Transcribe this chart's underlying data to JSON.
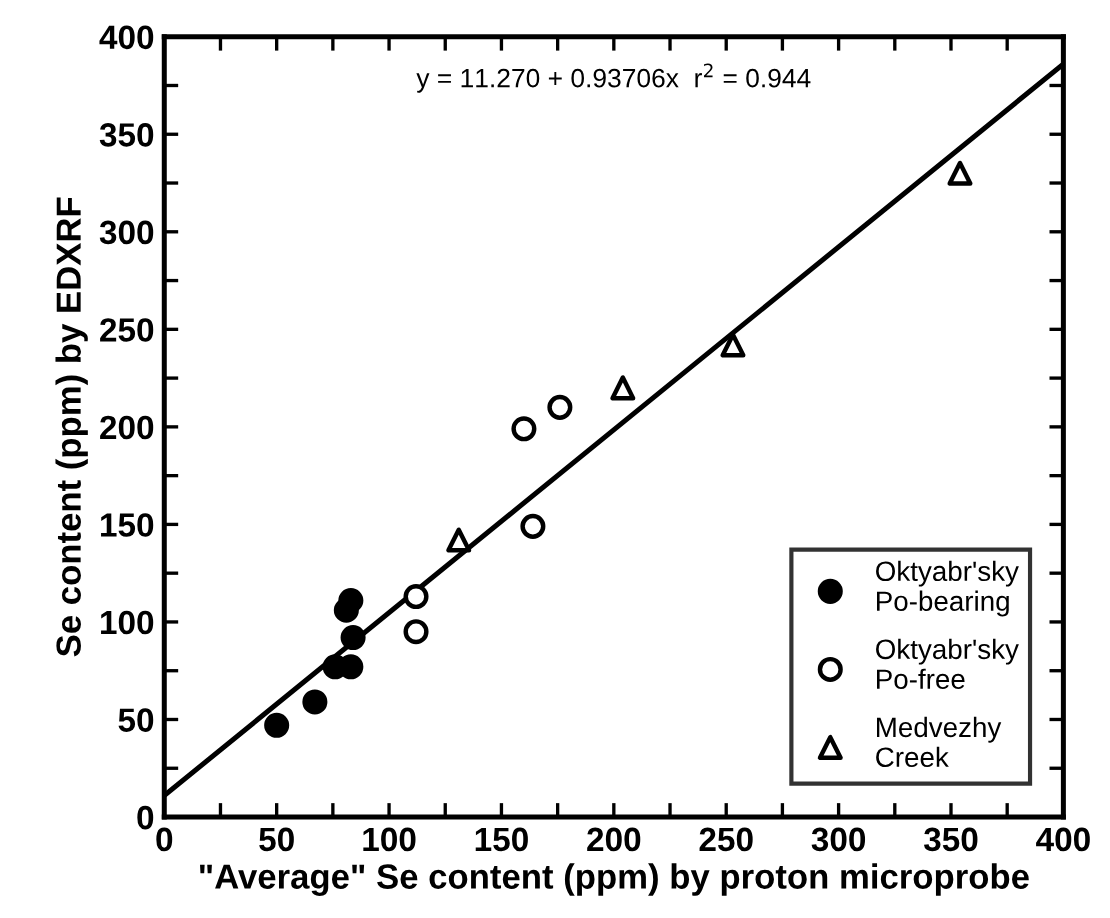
{
  "chart_data": {
    "type": "scatter",
    "xlabel": "\"Average\" Se content (ppm) by proton microprobe",
    "ylabel": "Se content (ppm) by EDXRF",
    "annotations": [
      {
        "text": "y = 11.270 + 0.93706x  r$^{2}$ = 0.944"
      }
    ],
    "xlim": [
      0,
      400
    ],
    "ylim": [
      0,
      400
    ],
    "xticks": [
      0,
      {
        "value": 25,
        "label": null
      },
      50,
      {
        "value": 75,
        "label": null
      },
      100,
      {
        "value": 125,
        "label": null
      },
      150,
      {
        "value": 175,
        "label": null
      },
      200,
      {
        "value": 225,
        "label": null
      },
      250,
      {
        "value": 275,
        "label": null
      },
      300,
      {
        "value": 325,
        "label": null
      },
      350,
      {
        "value": 375,
        "label": null
      },
      400
    ],
    "yticks": [
      0,
      {
        "value": 25,
        "label": null
      },
      50,
      {
        "value": 75,
        "label": null
      },
      100,
      {
        "value": 125,
        "label": null
      },
      150,
      {
        "value": 175,
        "label": null
      },
      200,
      {
        "value": 225,
        "label": null
      },
      250,
      {
        "value": 275,
        "label": null
      },
      300,
      {
        "value": 325,
        "label": null
      },
      350,
      {
        "value": 375,
        "label": null
      },
      400
    ],
    "grid": false,
    "legend": "bottom right",
    "series": [
      {
        "name": "Oktyabr'sky\nPo-bearing",
        "color": "#000000",
        "marker": "circle",
        "x": [
          50,
          67,
          76,
          83,
          81,
          83,
          84
        ],
        "values": [
          47,
          59,
          77,
          77,
          106,
          111,
          92
        ]
      },
      {
        "name": "Oktyabr'sky\nPo-free",
        "color": "#ffffff",
        "marker": "circle",
        "x": [
          112,
          112,
          160,
          176,
          164
        ],
        "values": [
          113,
          95,
          199,
          210,
          149
        ]
      },
      {
        "name": "Medvezhy\nCreek",
        "color": "#ffffff",
        "marker": "triangle",
        "x": [
          131,
          204,
          253,
          354
        ],
        "values": [
          142,
          220,
          242,
          330
        ]
      },
      {
        "type": "line",
        "color": "#000000",
        "line_style": "solid",
        "x": [
          0,
          400
        ],
        "values": [
          11,
          386
        ]
      }
    ]
  }
}
